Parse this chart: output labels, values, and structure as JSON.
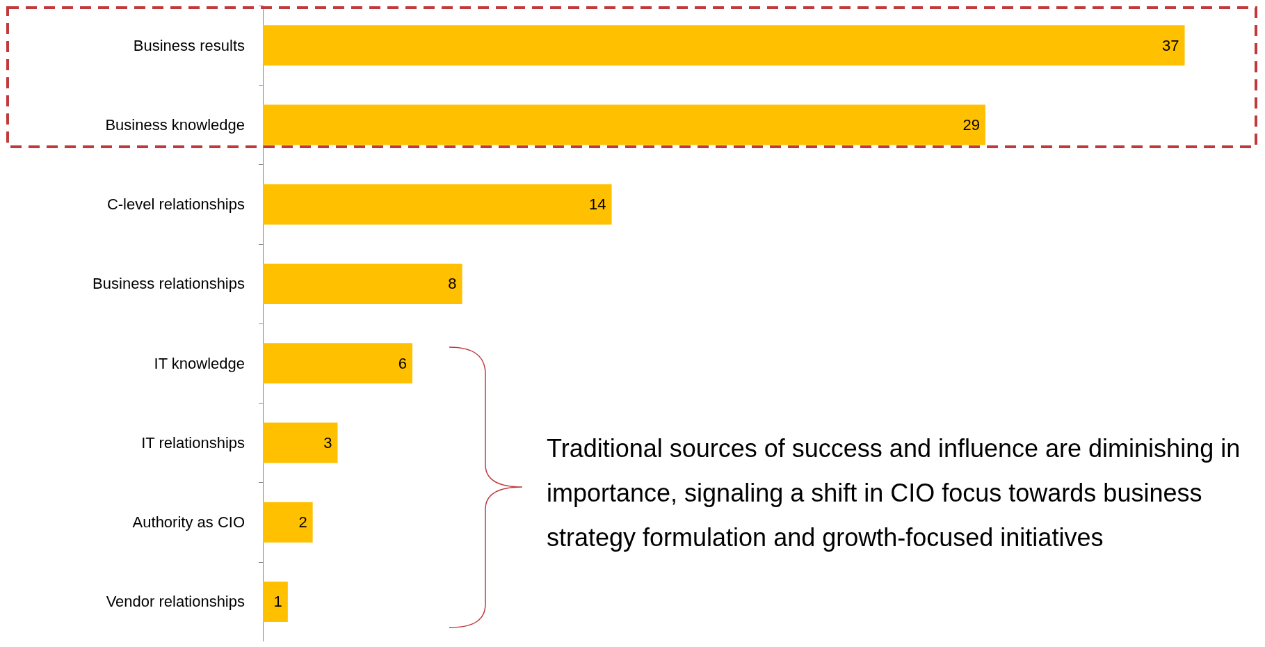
{
  "chart_data": {
    "type": "bar",
    "orientation": "horizontal",
    "categories": [
      "Business results",
      "Business knowledge",
      "C-level relationships",
      "Business relationships",
      "IT knowledge",
      "IT relationships",
      "Authority as CIO",
      "Vendor relationships"
    ],
    "values": [
      37,
      29,
      14,
      8,
      6,
      3,
      2,
      1
    ],
    "color": "#ffc000",
    "data_labels": true,
    "annotations": [
      "Traditional sources of success and influence are diminishing in importance, signaling a shift in CIO focus towards business strategy formulation and growth-focused initiatives"
    ]
  }
}
